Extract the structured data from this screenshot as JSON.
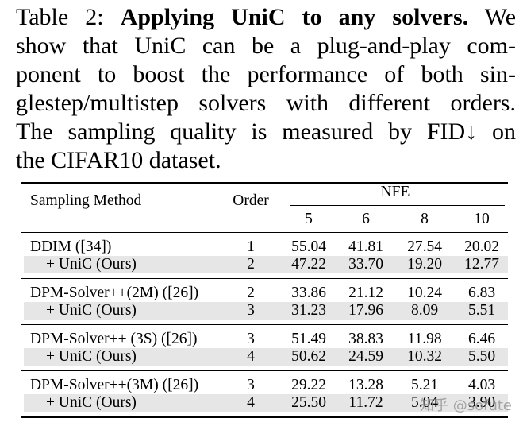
{
  "caption": {
    "lines": [
      [
        "Table 2:",
        "Applying UniC to any solvers.",
        "We"
      ],
      "show that UniC can be a plug-and-play com-",
      "ponent to boost the performance of both sin-",
      "glestep/multistep solvers with different orders.",
      "The sampling quality is measured by FID↓ on",
      "the CIFAR10 dataset."
    ]
  },
  "table": {
    "header": {
      "method": "Sampling Method",
      "order": "Order",
      "nfe": "NFE",
      "steps": [
        "5",
        "6",
        "8",
        "10"
      ]
    },
    "groups": [
      [
        [
          "DDIM ([34])",
          "1",
          "55.04",
          "41.81",
          "27.54",
          "20.02"
        ],
        [
          "+ UniC (Ours)",
          "2",
          "47.22",
          "33.70",
          "19.20",
          "12.77"
        ]
      ],
      [
        [
          "DPM-Solver++(2M) ([26])",
          "2",
          "33.86",
          "21.12",
          "10.24",
          "6.83"
        ],
        [
          "+ UniC (Ours)",
          "3",
          "31.23",
          "17.96",
          "8.09",
          "5.51"
        ]
      ],
      [
        [
          "DPM-Solver++ (3S) ([26])",
          "3",
          "51.49",
          "38.83",
          "11.98",
          "6.46"
        ],
        [
          "+ UniC (Ours)",
          "4",
          "50.62",
          "24.59",
          "10.32",
          "5.50"
        ]
      ],
      [
        [
          "DPM-Solver++(3M) ([26])",
          "3",
          "29.22",
          "13.28",
          "5.21",
          "4.03"
        ],
        [
          "+ UniC (Ours)",
          "4",
          "25.50",
          "11.72",
          "5.04",
          "3.90"
        ]
      ]
    ]
  },
  "watermark": "知乎 @sofute"
}
